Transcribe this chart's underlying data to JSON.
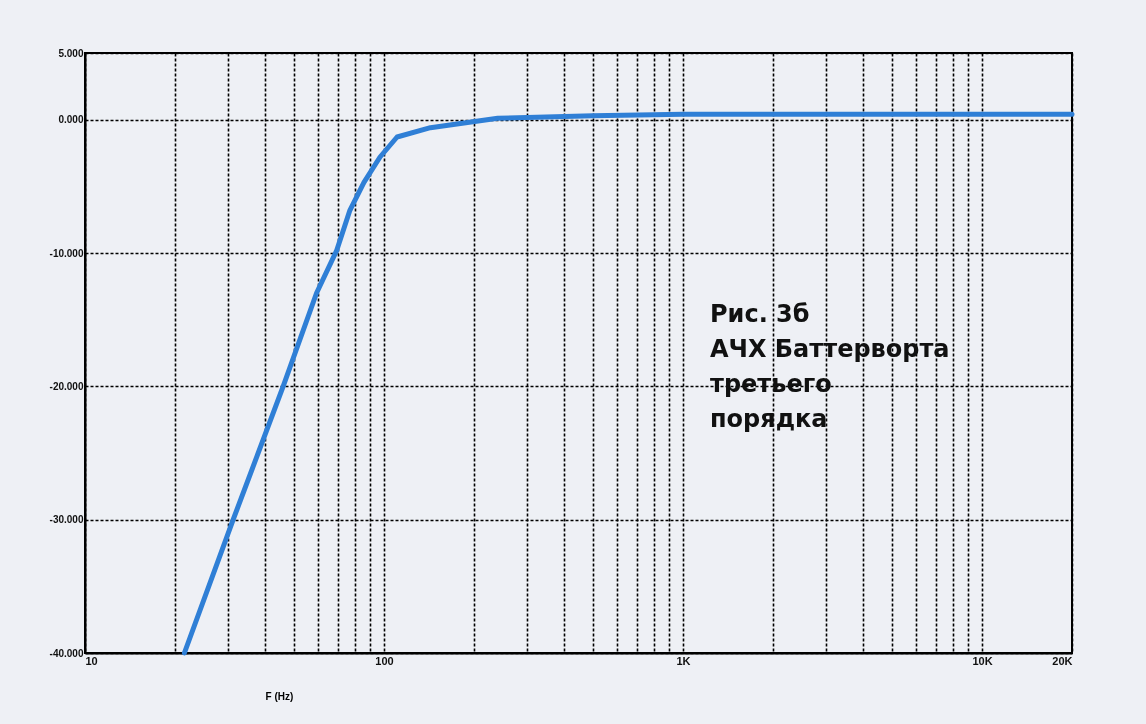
{
  "chart_data": {
    "type": "line",
    "xlabel": "F (Hz)",
    "log": "x",
    "grid": true,
    "marker": "none",
    "line_style": "solid",
    "xlim": [
      10,
      20000
    ],
    "ylim": [
      -40,
      5
    ],
    "xticks": [
      10,
      {
        "value": 20,
        "label": null
      },
      {
        "value": 30,
        "label": null
      },
      {
        "value": 40,
        "label": null
      },
      {
        "value": 50,
        "label": null
      },
      {
        "value": 60,
        "label": null
      },
      {
        "value": 70,
        "label": null
      },
      {
        "value": 80,
        "label": null
      },
      {
        "value": 90,
        "label": null
      },
      100,
      {
        "value": 200,
        "label": null
      },
      {
        "value": 300,
        "label": null
      },
      {
        "value": 400,
        "label": null
      },
      {
        "value": 500,
        "label": null
      },
      {
        "value": 600,
        "label": null
      },
      {
        "value": 700,
        "label": null
      },
      {
        "value": 800,
        "label": null
      },
      {
        "value": 900,
        "label": null
      },
      {
        "value": 1000,
        "label": "1K"
      },
      {
        "value": 2000,
        "label": null
      },
      {
        "value": 3000,
        "label": null
      },
      {
        "value": 4000,
        "label": null
      },
      {
        "value": 5000,
        "label": null
      },
      {
        "value": 6000,
        "label": null
      },
      {
        "value": 7000,
        "label": null
      },
      {
        "value": 8000,
        "label": null
      },
      {
        "value": 9000,
        "label": null
      },
      {
        "value": 10000,
        "label": "10K"
      },
      {
        "value": 20000,
        "label": "20K"
      }
    ],
    "yticks": [
      {
        "value": -40,
        "label": "-40.000"
      },
      {
        "value": -30,
        "label": "-30.000"
      },
      {
        "value": -20,
        "label": "-20.000"
      },
      {
        "value": -10,
        "label": "-10.000"
      },
      {
        "value": 0,
        "label": "0.000"
      },
      {
        "value": 5,
        "label": "5.000"
      }
    ],
    "annotations": [
      "Рис. 3б\nАЧХ Баттерворта\nтретьего\nпорядка"
    ],
    "series": [
      {
        "color": "#2f7fd6",
        "x": [
          21.5,
          31.3,
          46,
          59.5,
          69.5,
          76.9,
          85.7,
          97,
          110.6,
          143,
          240,
          500,
          1000,
          20000
        ],
        "values": [
          -40,
          -30,
          -20,
          -13,
          -9.8,
          -6.8,
          -4.7,
          -2.8,
          -1.3,
          -0.6,
          0.1,
          0.3,
          0.4,
          0.4
        ]
      }
    ]
  }
}
